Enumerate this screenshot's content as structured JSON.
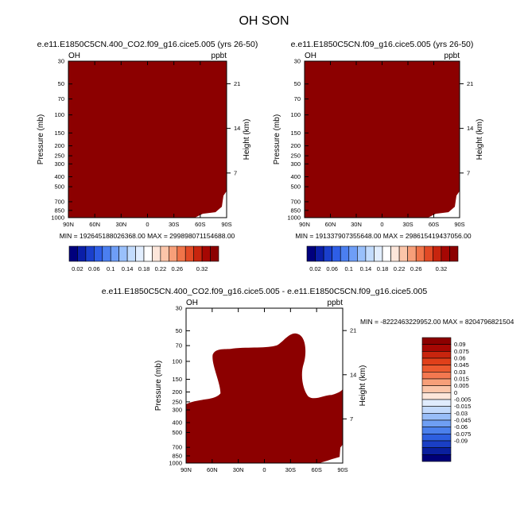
{
  "figure": {
    "title": "OH SON"
  },
  "colors": {
    "field": "#8c0000",
    "blue_scale": [
      "#00007d",
      "#0a1ea8",
      "#1a3fcc",
      "#2e5ee6",
      "#4b7ff0",
      "#6e9ef7",
      "#99c0fb",
      "#c3dcfd",
      "#e2eefe",
      "#ffffff",
      "#fde6da",
      "#fbc5a9",
      "#f79f79",
      "#f07449",
      "#e24a25",
      "#c8250e",
      "#a60703",
      "#8c0000"
    ],
    "diff_scale": [
      "#000078",
      "#0a1f9e",
      "#1a3fc5",
      "#2d5fe0",
      "#4b80ec",
      "#6f9ff3",
      "#98bdf8",
      "#c2d9fb",
      "#e0ecfd",
      "#fde6da",
      "#fbc5a9",
      "#f79f79",
      "#f47850",
      "#ec5a2f",
      "#e0401a",
      "#c8250e",
      "#a60703",
      "#8c0000"
    ]
  },
  "chart_data": [
    {
      "type": "heatmap",
      "title": "e.e11.E1850C5CN.400_CO2.f09_g16.cice5.005 (yrs 26-50)",
      "left_label": "OH",
      "right_label": "ppbt",
      "ylabel": "Pressure (mb)",
      "ylabel_right": "Height (km)",
      "x_ticks": [
        "90N",
        "60N",
        "30N",
        "0",
        "30S",
        "60S",
        "90S"
      ],
      "y_ticks": [
        "30",
        "50",
        "70",
        "100",
        "150",
        "200",
        "250",
        "300",
        "400",
        "500",
        "700",
        "850",
        "1000"
      ],
      "y_ticks_right": [
        "21",
        "14",
        "7"
      ],
      "min_max_text": "MIN = 192645188026368.00   MAX = 299898071154688.00",
      "colorbar_labels": [
        "0.02",
        "0.06",
        "0.1",
        "0.14",
        "0.18",
        "0.22",
        "0.26",
        "0.32"
      ],
      "colorbar_orientation": "horizontal"
    },
    {
      "type": "heatmap",
      "title": "e.e11.E1850C5CN.f09_g16.cice5.005 (yrs 26-50)",
      "left_label": "OH",
      "right_label": "ppbt",
      "ylabel": "Pressure (mb)",
      "ylabel_right": "Height (km)",
      "x_ticks": [
        "90N",
        "60N",
        "30N",
        "0",
        "30S",
        "60S",
        "90S"
      ],
      "y_ticks": [
        "30",
        "50",
        "70",
        "100",
        "150",
        "200",
        "250",
        "300",
        "400",
        "500",
        "700",
        "850",
        "1000"
      ],
      "y_ticks_right": [
        "21",
        "14",
        "7"
      ],
      "min_max_text": "MIN = 191337907355648.00   MAX = 298615419437056.00",
      "colorbar_labels": [
        "0.02",
        "0.06",
        "0.1",
        "0.14",
        "0.18",
        "0.22",
        "0.26",
        "0.32"
      ],
      "colorbar_orientation": "horizontal"
    },
    {
      "type": "heatmap",
      "title": "e.e11.E1850C5CN.400_CO2.f09_g16.cice5.005 - e.e11.E1850C5CN.f09_g16.cice5.005",
      "left_label": "OH",
      "right_label": "ppbt",
      "ylabel": "Pressure (mb)",
      "ylabel_right": "Height (km)",
      "x_ticks": [
        "90N",
        "60N",
        "30N",
        "0",
        "30S",
        "60S",
        "90S"
      ],
      "y_ticks": [
        "30",
        "50",
        "70",
        "100",
        "150",
        "200",
        "250",
        "300",
        "400",
        "500",
        "700",
        "850",
        "1000"
      ],
      "y_ticks_right": [
        "21",
        "14",
        "7"
      ],
      "min_max_text": "MIN = -8222463229952.00   MAX = 8204796821504",
      "colorbar_labels": [
        "0.09",
        "0.075",
        "0.06",
        "0.045",
        "0.03",
        "0.015",
        "0.005",
        "0",
        "-0.005",
        "-0.015",
        "-0.03",
        "-0.045",
        "-0.06",
        "-0.075",
        "-0.09"
      ],
      "colorbar_orientation": "vertical"
    }
  ]
}
